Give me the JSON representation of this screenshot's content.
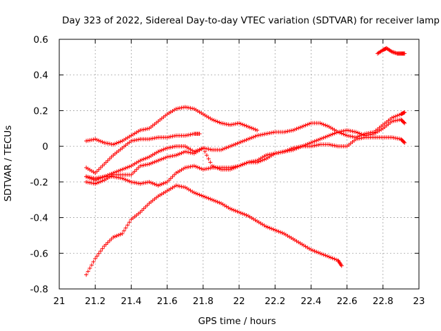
{
  "chart_data": {
    "type": "scatter",
    "title": "Day 323 of 2022, Sidereal Day-to-day VTEC variation (SDTVAR) for receiver lamp",
    "xlabel": "GPS time / hours",
    "ylabel": "SDTVAR / TECUs",
    "xlim": [
      21,
      23
    ],
    "ylim": [
      -0.8,
      0.6
    ],
    "xticks": [
      "21",
      "21.2",
      "21.4",
      "21.6",
      "21.8",
      "22",
      "22.2",
      "22.4",
      "22.6",
      "22.8",
      "23"
    ],
    "yticks": [
      "-0.8",
      "-0.6",
      "-0.4",
      "-0.2",
      "0",
      "0.2",
      "0.4",
      "0.6"
    ],
    "grid": true,
    "marker": "+",
    "color": "#ff0000",
    "series": [
      {
        "name": "s1",
        "x": [
          21.15,
          21.2,
          21.25,
          21.3,
          21.35,
          21.4,
          21.45,
          21.5,
          21.55,
          21.6,
          21.65,
          21.7,
          21.75,
          21.8,
          21.85,
          21.9,
          21.95,
          22.0,
          22.05,
          22.1
        ],
        "y": [
          0.03,
          0.04,
          0.02,
          0.01,
          0.03,
          0.06,
          0.09,
          0.1,
          0.14,
          0.18,
          0.21,
          0.22,
          0.21,
          0.18,
          0.15,
          0.13,
          0.12,
          0.13,
          0.11,
          0.09
        ]
      },
      {
        "name": "s2",
        "x": [
          21.15,
          21.2,
          21.25,
          21.3,
          21.35,
          21.4,
          21.45,
          21.5,
          21.55,
          21.6,
          21.65,
          21.7,
          21.75,
          21.78
        ],
        "y": [
          -0.12,
          -0.15,
          -0.1,
          -0.05,
          -0.01,
          0.03,
          0.04,
          0.04,
          0.05,
          0.05,
          0.06,
          0.06,
          0.07,
          0.07
        ]
      },
      {
        "name": "s3",
        "x": [
          21.15,
          21.2,
          21.25,
          21.3,
          21.35,
          21.4,
          21.45,
          21.5,
          21.55,
          21.6,
          21.65,
          21.7,
          21.75,
          21.8,
          21.85,
          21.9,
          21.95,
          22.0,
          22.05,
          22.1,
          22.15,
          22.2,
          22.25,
          22.3,
          22.35,
          22.4,
          22.45,
          22.5,
          22.55,
          22.6,
          22.65,
          22.7,
          22.75,
          22.8,
          22.85,
          22.9,
          22.92
        ],
        "y": [
          -0.17,
          -0.19,
          -0.17,
          -0.15,
          -0.13,
          -0.11,
          -0.08,
          -0.06,
          -0.03,
          -0.01,
          0.0,
          0.0,
          -0.03,
          -0.01,
          -0.02,
          -0.02,
          0.0,
          0.02,
          0.04,
          0.06,
          0.07,
          0.08,
          0.08,
          0.09,
          0.11,
          0.13,
          0.13,
          0.11,
          0.08,
          0.06,
          0.05,
          0.07,
          0.08,
          0.12,
          0.16,
          0.18,
          0.19
        ]
      },
      {
        "name": "s4",
        "x": [
          21.15,
          21.2,
          21.25,
          21.3,
          21.35,
          21.4,
          21.45,
          21.5,
          21.55,
          21.6,
          21.65,
          21.7,
          21.75,
          21.8,
          21.85,
          21.9,
          21.95,
          22.0,
          22.05,
          22.1,
          22.15,
          22.2,
          22.25,
          22.3,
          22.35,
          22.4,
          22.45,
          22.5,
          22.55,
          22.6,
          22.65,
          22.7,
          22.75,
          22.8,
          22.85,
          22.9,
          22.92
        ],
        "y": [
          -0.2,
          -0.21,
          -0.19,
          -0.16,
          -0.16,
          -0.16,
          -0.11,
          -0.1,
          -0.08,
          -0.06,
          -0.05,
          -0.03,
          -0.04,
          -0.01,
          -0.11,
          -0.13,
          -0.13,
          -0.11,
          -0.09,
          -0.09,
          -0.07,
          -0.04,
          -0.03,
          -0.02,
          0.0,
          0.02,
          0.04,
          0.06,
          0.08,
          0.09,
          0.08,
          0.06,
          0.07,
          0.1,
          0.14,
          0.15,
          0.13
        ]
      },
      {
        "name": "s5",
        "x": [
          21.15,
          21.2,
          21.25,
          21.3,
          21.35,
          21.4,
          21.45,
          21.5,
          21.55,
          21.6,
          21.65,
          21.7,
          21.75,
          21.8,
          21.85,
          21.9,
          21.95,
          22.0,
          22.05,
          22.1,
          22.15,
          22.2,
          22.25,
          22.3,
          22.35,
          22.4,
          22.45,
          22.5,
          22.55,
          22.6,
          22.65,
          22.7,
          22.75,
          22.8,
          22.85,
          22.9,
          22.92
        ],
        "y": [
          -0.17,
          -0.18,
          -0.17,
          -0.17,
          -0.18,
          -0.2,
          -0.21,
          -0.2,
          -0.22,
          -0.2,
          -0.15,
          -0.12,
          -0.11,
          -0.13,
          -0.12,
          -0.12,
          -0.12,
          -0.11,
          -0.09,
          -0.08,
          -0.05,
          -0.04,
          -0.03,
          -0.01,
          0.0,
          0.0,
          0.01,
          0.01,
          0.0,
          0.0,
          0.04,
          0.05,
          0.05,
          0.05,
          0.05,
          0.04,
          0.02
        ]
      },
      {
        "name": "s6",
        "x": [
          21.15,
          21.2,
          21.25,
          21.3,
          21.35,
          21.4,
          21.45,
          21.5,
          21.55,
          21.6,
          21.65,
          21.7,
          21.75,
          21.8,
          21.85,
          21.9,
          21.95,
          22.0,
          22.05,
          22.1,
          22.15,
          22.2,
          22.25,
          22.3,
          22.35,
          22.4,
          22.45,
          22.5,
          22.55,
          22.57
        ],
        "y": [
          -0.72,
          -0.63,
          -0.56,
          -0.51,
          -0.49,
          -0.41,
          -0.37,
          -0.32,
          -0.28,
          -0.25,
          -0.22,
          -0.23,
          -0.26,
          -0.28,
          -0.3,
          -0.32,
          -0.35,
          -0.37,
          -0.39,
          -0.42,
          -0.45,
          -0.47,
          -0.49,
          -0.52,
          -0.55,
          -0.58,
          -0.6,
          -0.62,
          -0.64,
          -0.67
        ]
      },
      {
        "name": "s7",
        "x": [
          22.77,
          22.8,
          22.82,
          22.85,
          22.88,
          22.9,
          22.92
        ],
        "y": [
          0.52,
          0.54,
          0.55,
          0.53,
          0.52,
          0.52,
          0.52
        ]
      }
    ]
  }
}
